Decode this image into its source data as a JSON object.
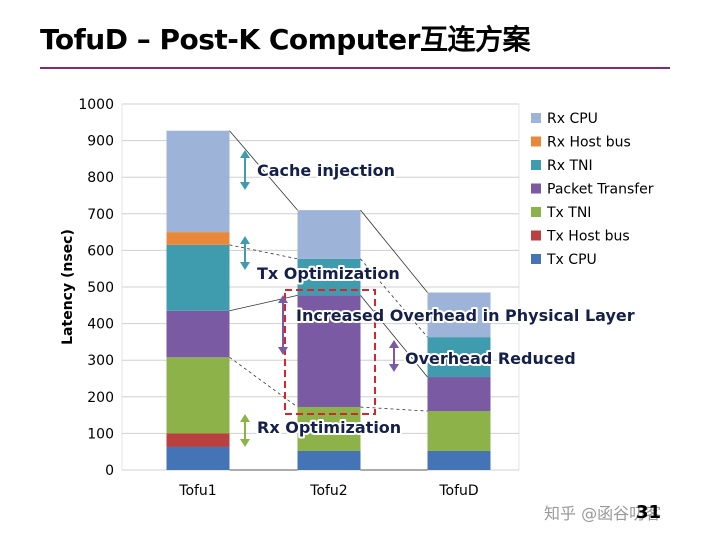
{
  "slide": {
    "title": "TofuD – Post-K Computer互连方案",
    "page_number": "31",
    "watermark": "知乎 @函谷叨客"
  },
  "colors": {
    "title_rule": "#7b2c7f",
    "Rx CPU": "#9db3d8",
    "Rx Host bus": "#e9883a",
    "Rx TNI": "#3f9cae",
    "Packet Transfer": "#7b5aa4",
    "Tx TNI": "#8db24a",
    "Tx Host bus": "#b9403e",
    "Tx CPU": "#4473b6",
    "annotation_arrow": "#3f9cae",
    "annotation_arrow_purple": "#7b5aa4",
    "annotation_arrow_green": "#8db24a",
    "highlight_box": "#d6262b"
  },
  "chart_data": {
    "type": "bar",
    "stacked": true,
    "categories": [
      "Tofu1",
      "Tofu2",
      "TofuD"
    ],
    "ylabel": "Latency (nsec)",
    "xlabel": "",
    "ylim": [
      0,
      1000
    ],
    "yticks": [
      0,
      100,
      200,
      300,
      400,
      500,
      600,
      700,
      800,
      900,
      1000
    ],
    "grid": true,
    "legend_position": "right",
    "series": [
      {
        "name": "Tx CPU",
        "values": [
          63,
          52,
          52
        ]
      },
      {
        "name": "Tx Host bus",
        "values": [
          37,
          0,
          0
        ]
      },
      {
        "name": "Tx TNI",
        "values": [
          208,
          120,
          109
        ]
      },
      {
        "name": "Packet Transfer",
        "values": [
          127,
          305,
          93
        ]
      },
      {
        "name": "Rx TNI",
        "values": [
          180,
          100,
          109
        ]
      },
      {
        "name": "Rx Host bus",
        "values": [
          35,
          0,
          0
        ]
      },
      {
        "name": "Rx CPU",
        "values": [
          277,
          133,
          122
        ]
      }
    ],
    "legend_order": [
      "Rx CPU",
      "Rx Host bus",
      "Rx TNI",
      "Packet Transfer",
      "Tx TNI",
      "Tx Host bus",
      "Tx CPU"
    ],
    "annotations": [
      "Cache injection",
      "Tx Optimization",
      "Increased Overhead in Physical Layer",
      "Overhead Reduced",
      "Rx Optimization"
    ]
  }
}
